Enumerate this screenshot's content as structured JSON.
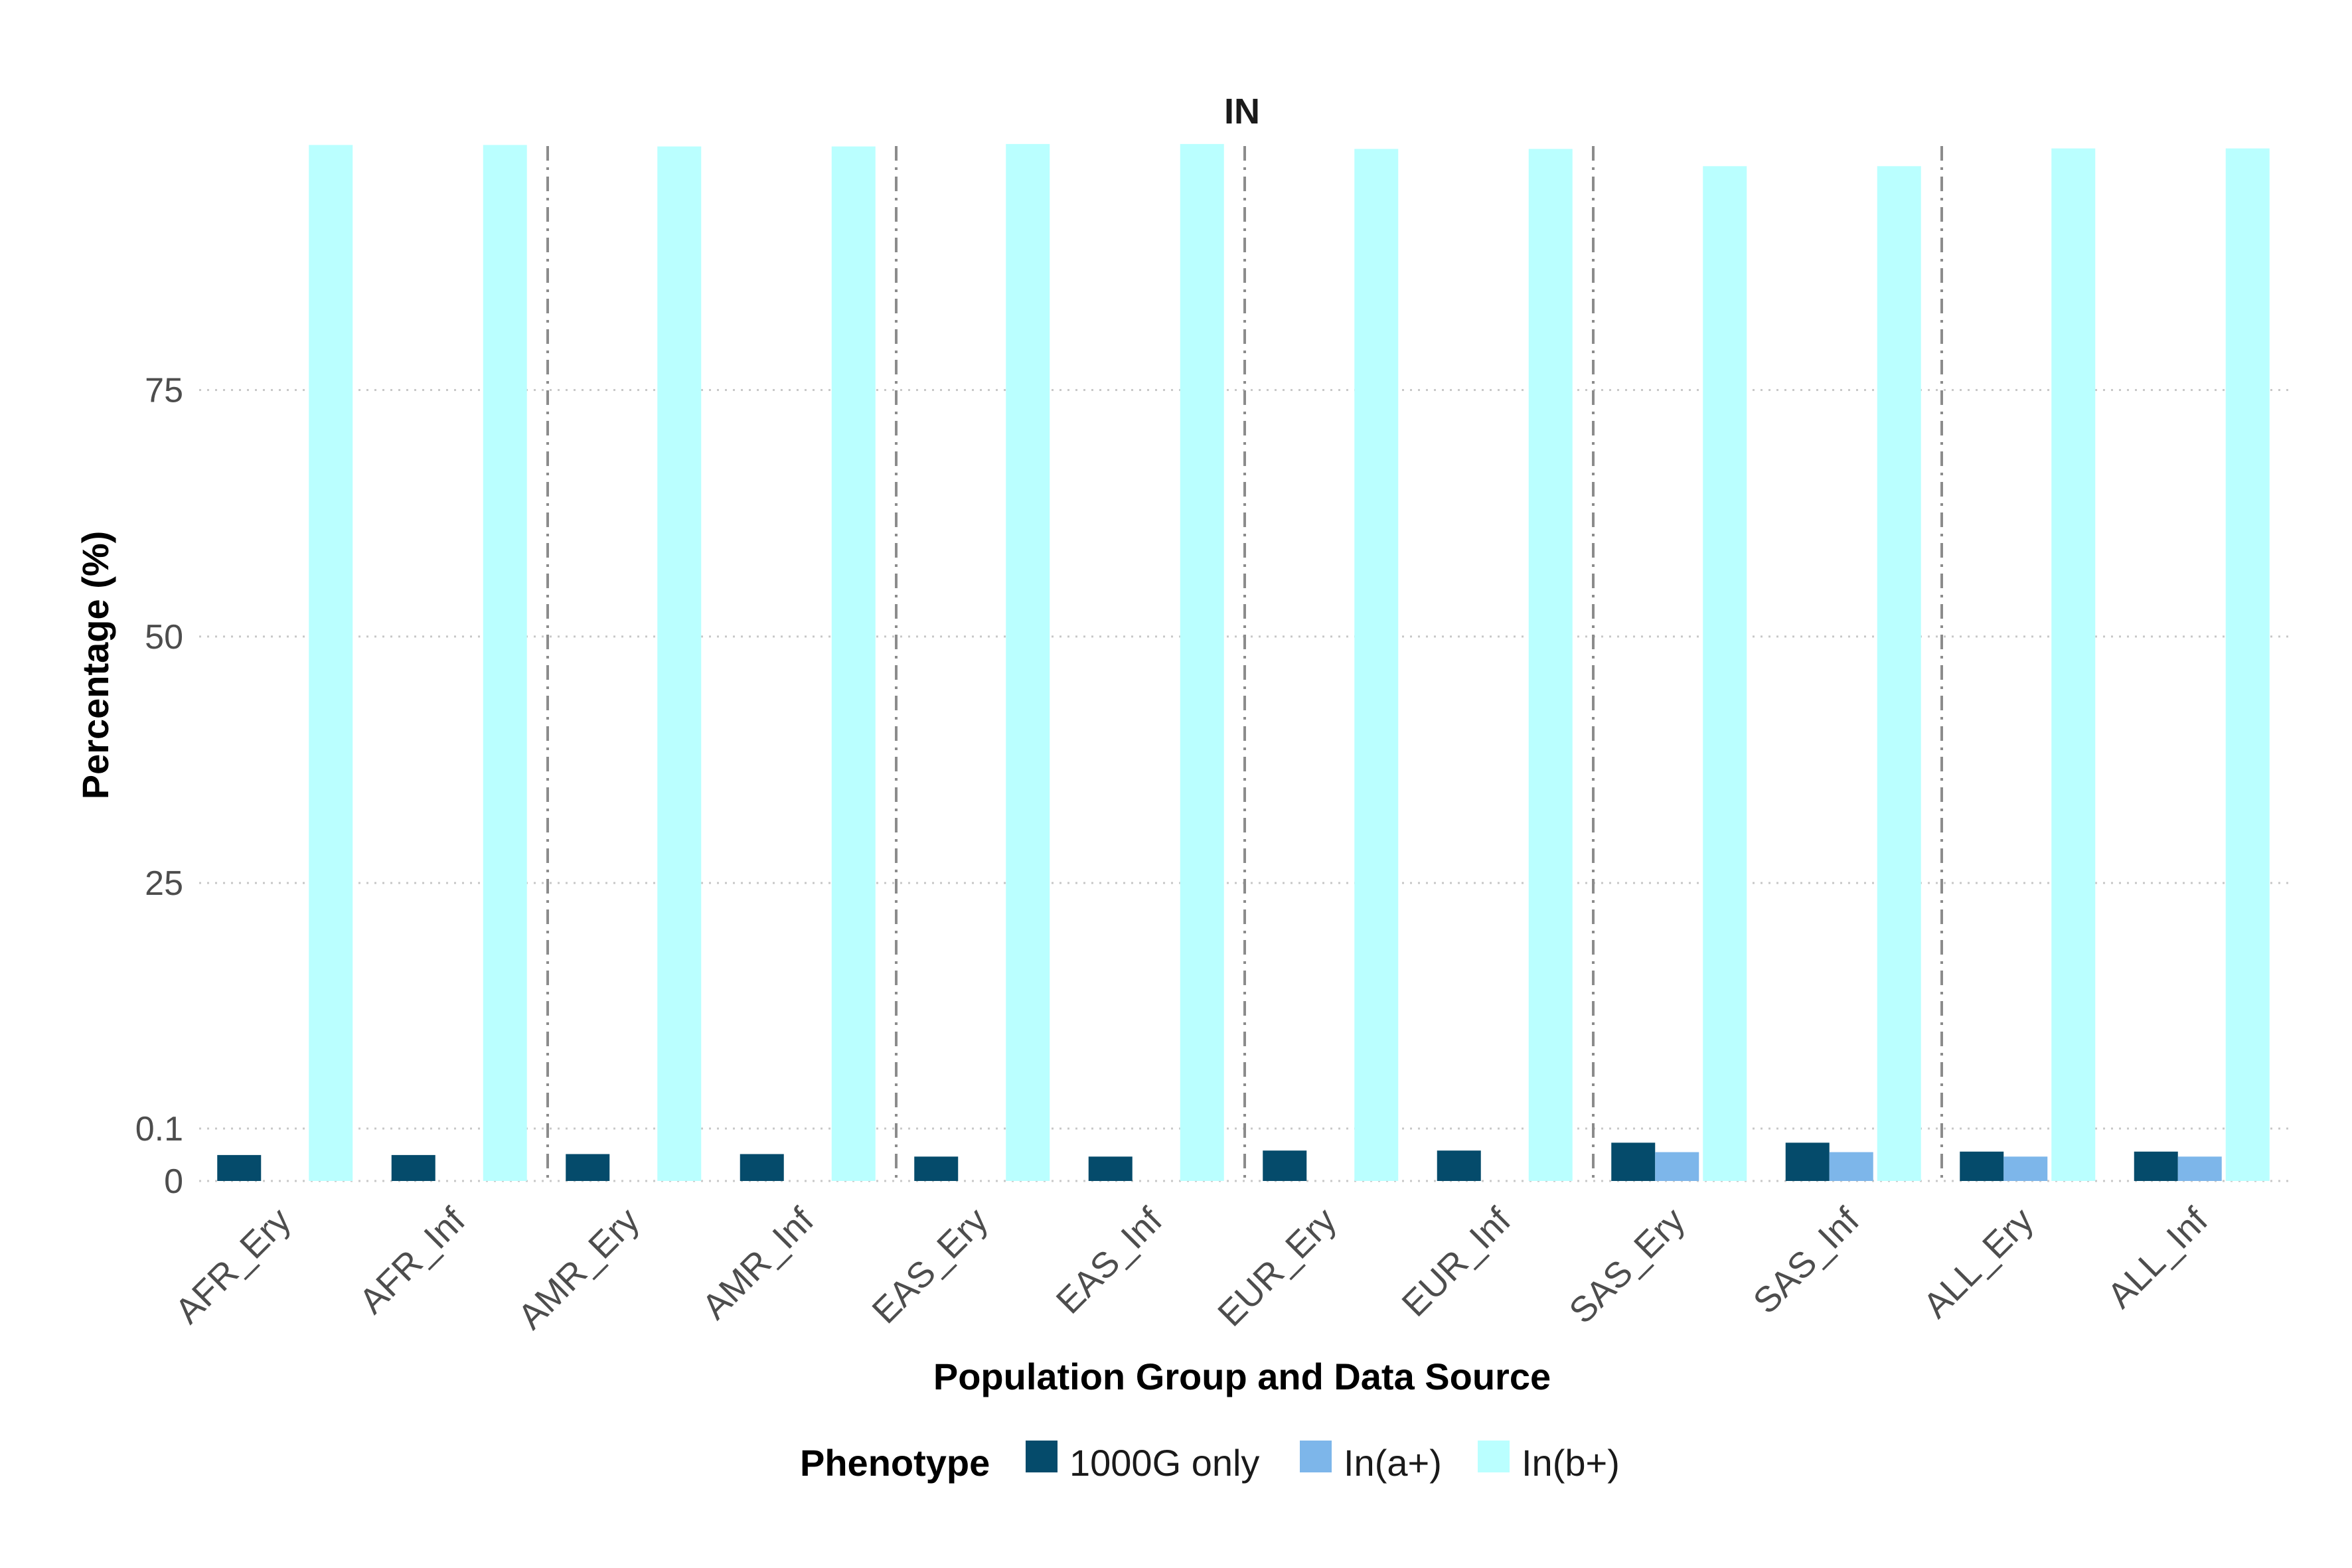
{
  "chart_data": {
    "type": "bar",
    "title": "IN",
    "xlabel": "Population Group and Data Source",
    "ylabel": "Percentage (%)",
    "categories": [
      "AFR_Ery",
      "AFR_Inf",
      "AMR_Ery",
      "AMR_Inf",
      "EAS_Ery",
      "EAS_Inf",
      "EUR_Ery",
      "EUR_Inf",
      "SAS_Ery",
      "SAS_Inf",
      "ALL_Ery",
      "ALL_Inf"
    ],
    "y_ticks": [
      {
        "value": 0,
        "label": "0"
      },
      {
        "value": 0.1,
        "label": "0.1"
      },
      {
        "value": 25,
        "label": "25"
      },
      {
        "value": 50,
        "label": "50"
      },
      {
        "value": 75,
        "label": "75"
      }
    ],
    "y_scale_note": "piecewise (0-0.1 expanded)",
    "ylim": [
      0,
      100
    ],
    "grid": "horizontal dotted",
    "group_separators": [
      2,
      4,
      6,
      8,
      10
    ],
    "legend": {
      "title": "Phenotype",
      "position": "bottom"
    },
    "series": [
      {
        "name": "1000G only",
        "color": "#054b6b",
        "values": [
          0.0495,
          0.0495,
          0.0513,
          0.0513,
          0.0465,
          0.0465,
          0.058,
          0.058,
          0.073,
          0.073,
          0.056,
          0.056
        ]
      },
      {
        "name": "In(a+)",
        "color": "#7db6ea",
        "values": [
          0,
          0,
          0,
          0,
          0,
          0,
          0,
          0,
          0.055,
          0.055,
          0.0465,
          0.0465
        ]
      },
      {
        "name": "In(b+)",
        "color": "#baffff",
        "values": [
          99.85,
          99.85,
          99.7,
          99.7,
          99.95,
          99.95,
          99.45,
          99.45,
          97.7,
          97.7,
          99.5,
          99.5
        ]
      }
    ]
  }
}
